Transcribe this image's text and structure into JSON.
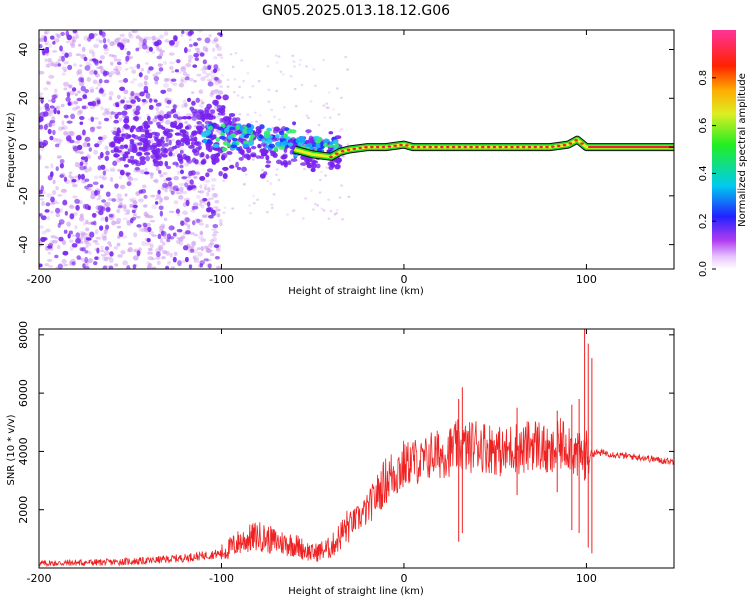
{
  "title": "GN05.2025.013.18.12.G06",
  "colors": {
    "snr_line": "#ee2222",
    "trace_outer": "#111111",
    "trace_fill": "#22dd22",
    "trace_core": "#ee2233",
    "grid": "#aaaaaa",
    "speckle_low": "#cc99ee",
    "speckle_mid": "#7722ee",
    "speckle_high": "#00ccdd"
  },
  "chart_data": [
    {
      "type": "heatmap",
      "title": "",
      "xlabel": "Height of straight line (km)",
      "ylabel": "Frequency (Hz)",
      "xlim": [
        -200,
        148
      ],
      "ylim": [
        -50,
        48
      ],
      "xticks": [
        "-200",
        "-100",
        "0",
        "100"
      ],
      "yticks": [
        "-40",
        "-20",
        "0",
        "20",
        "40"
      ],
      "grid": false,
      "colorbar": {
        "label": "Normalized spectral amplitude",
        "range": [
          0,
          1
        ],
        "ticks": [
          "0.0",
          "0.2",
          "0.4",
          "0.6",
          "0.8"
        ],
        "colormap": "rainbow (white-magenta-blue-cyan-green-yellow-red-pink)"
      },
      "ridge": {
        "x": [
          -60,
          -50,
          -40,
          -35,
          -30,
          -20,
          -10,
          0,
          5,
          10,
          20,
          30,
          40,
          60,
          80,
          90,
          95,
          100,
          148
        ],
        "y": [
          -1,
          -3,
          -4,
          -2,
          -1,
          0,
          0,
          1,
          0,
          0,
          0,
          0,
          0,
          0,
          0,
          1,
          3,
          0,
          0
        ]
      },
      "scatter_region": {
        "x_range": [
          -200,
          -30
        ],
        "dense_x_range": [
          -200,
          -100
        ],
        "concentrated_x_range": [
          -140,
          -40
        ],
        "concentrated_y_range": [
          -15,
          15
        ]
      }
    },
    {
      "type": "line",
      "title": "",
      "xlabel": "Height of straight line (km)",
      "ylabel": "SNR (10 * v/v)",
      "xlim": [
        -200,
        148
      ],
      "ylim": [
        0,
        8200
      ],
      "xticks": [
        "-200",
        "-100",
        "0",
        "100"
      ],
      "yticks": [
        "2000",
        "4000",
        "6000",
        "8000"
      ],
      "grid": false,
      "series": [
        {
          "name": "",
          "x": [
            -200,
            -180,
            -160,
            -140,
            -120,
            -100,
            -90,
            -80,
            -70,
            -60,
            -50,
            -40,
            -30,
            -25,
            -20,
            -15,
            -10,
            -5,
            0,
            5,
            10,
            15,
            20,
            25,
            30,
            35,
            40,
            45,
            50,
            55,
            60,
            65,
            70,
            75,
            80,
            85,
            90,
            95,
            100,
            105,
            110,
            120,
            130,
            140,
            148
          ],
          "y": [
            150,
            180,
            200,
            250,
            350,
            500,
            900,
            1100,
            900,
            800,
            500,
            700,
            1500,
            1700,
            2000,
            2500,
            3000,
            3300,
            3500,
            3700,
            3600,
            3900,
            3900,
            4000,
            4200,
            4100,
            4300,
            4150,
            4100,
            3900,
            4200,
            4000,
            4300,
            4200,
            3800,
            4200,
            4300,
            3800,
            3900,
            3950,
            3950,
            3850,
            3800,
            3700,
            3650
          ]
        }
      ],
      "spikes": [
        {
          "x": 30,
          "lo": 900,
          "hi": 5800
        },
        {
          "x": 32,
          "lo": 1200,
          "hi": 6200
        },
        {
          "x": 62,
          "lo": 2500,
          "hi": 5500
        },
        {
          "x": 84,
          "lo": 2600,
          "hi": 5400
        },
        {
          "x": 92,
          "lo": 1300,
          "hi": 5600
        },
        {
          "x": 96,
          "lo": 1200,
          "hi": 5800
        },
        {
          "x": 99,
          "lo": 3000,
          "hi": 8200
        },
        {
          "x": 101,
          "lo": 700,
          "hi": 7700
        },
        {
          "x": 103,
          "lo": 500,
          "hi": 7200
        }
      ]
    }
  ]
}
